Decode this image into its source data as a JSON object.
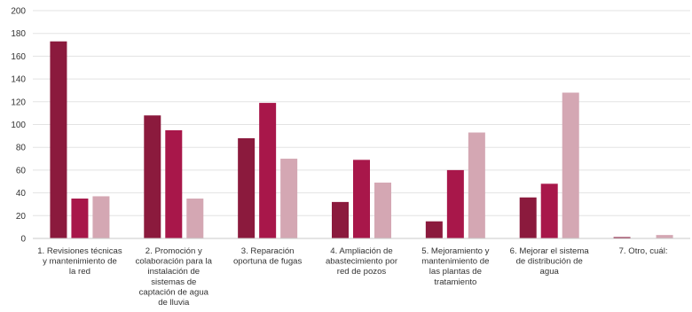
{
  "chart_data": {
    "type": "bar",
    "title": "",
    "xlabel": "",
    "ylabel": "",
    "ylim": [
      0,
      200
    ],
    "yticks": [
      0,
      20,
      40,
      60,
      80,
      100,
      120,
      140,
      160,
      180,
      200
    ],
    "grid": true,
    "legend": "none",
    "colors": [
      "#8B1A3D",
      "#A8174A",
      "#D4A7B3"
    ],
    "categories": [
      [
        "1. Revisiones técnicas",
        "y mantenimiento de",
        "la red"
      ],
      [
        "2. Promoción y",
        "colaboración para la",
        "instalación de",
        "sistemas de",
        "captación de agua",
        "de lluvia"
      ],
      [
        "3. Reparación",
        "oportuna de fugas"
      ],
      [
        "4. Ampliación de",
        "abastecimiento por",
        "red de pozos"
      ],
      [
        "5. Mejoramiento y",
        "mantenimiento de",
        "las plantas de",
        "tratamiento"
      ],
      [
        "6. Mejorar el sistema",
        "de distribución de",
        "agua"
      ],
      [
        "7. Otro, cuál:"
      ]
    ],
    "series": [
      {
        "values": [
          173,
          108,
          88,
          32,
          15,
          36,
          1
        ]
      },
      {
        "values": [
          35,
          95,
          119,
          69,
          60,
          48,
          0
        ]
      },
      {
        "values": [
          37,
          35,
          70,
          49,
          93,
          128,
          3
        ]
      }
    ]
  }
}
